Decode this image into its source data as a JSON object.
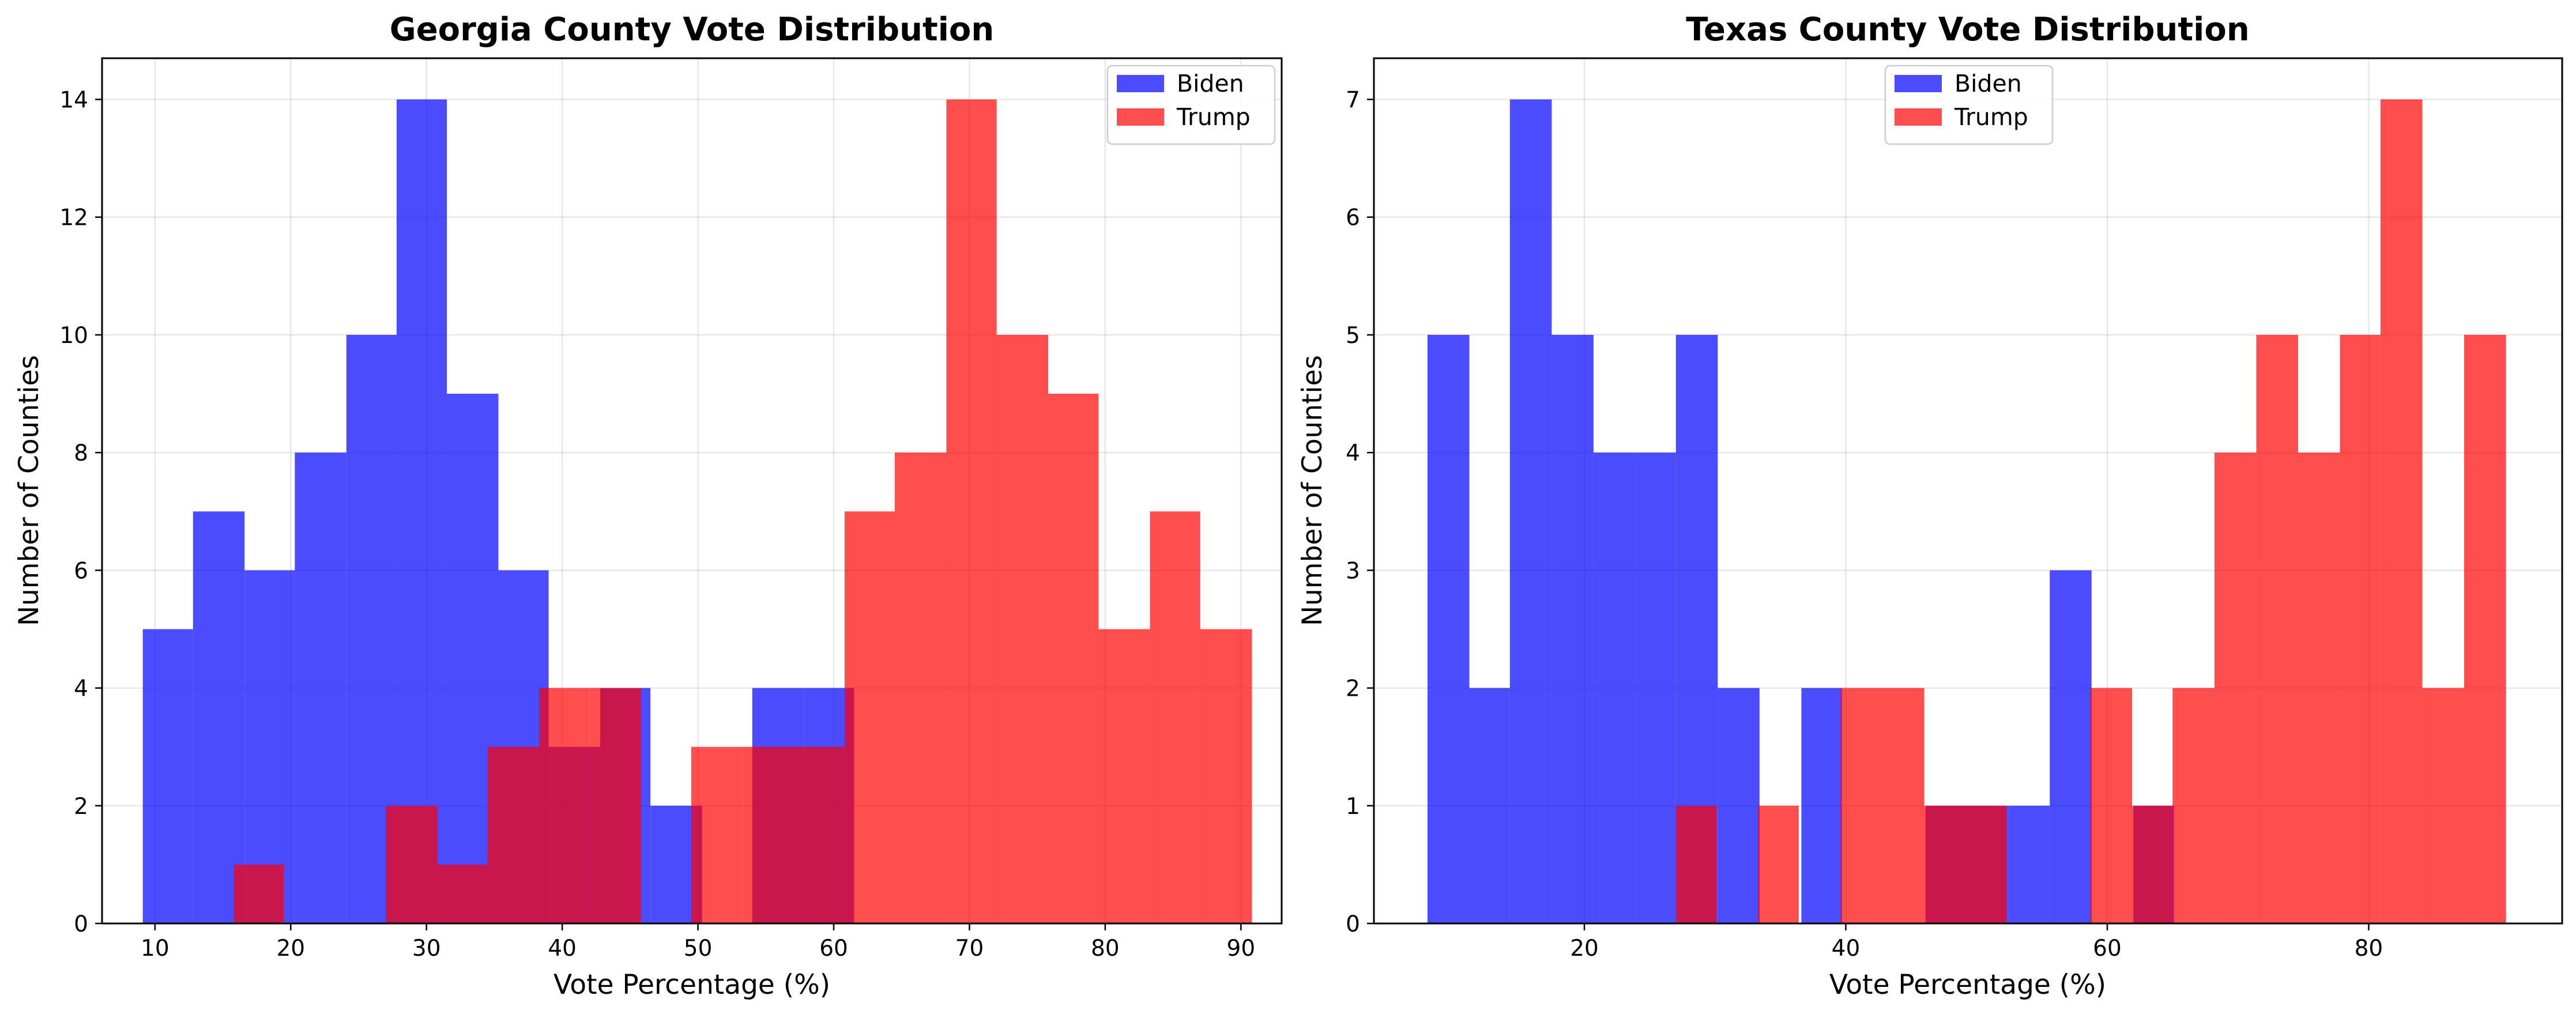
{
  "colors": {
    "biden": "#0000ff",
    "trump": "#ff0000"
  },
  "chart_data": [
    {
      "type": "histogram",
      "title": "Georgia County Vote Distribution",
      "xlabel": "Vote Percentage (%)",
      "ylabel": "Number of Counties",
      "xlim": [
        6.1,
        93.0
      ],
      "ylim": [
        0,
        14.7
      ],
      "xticks": [
        10,
        20,
        30,
        40,
        50,
        60,
        70,
        80,
        90
      ],
      "yticks": [
        0,
        2,
        4,
        6,
        8,
        10,
        12,
        14
      ],
      "legend": [
        "Biden",
        "Trump"
      ],
      "legend_position": "top-right",
      "grid": true,
      "series": [
        {
          "name": "Biden",
          "bins": [
            {
              "x0": 9.1,
              "x1": 12.8,
              "count": 5
            },
            {
              "x0": 12.8,
              "x1": 16.6,
              "count": 7
            },
            {
              "x0": 16.6,
              "x1": 20.3,
              "count": 6
            },
            {
              "x0": 20.3,
              "x1": 24.1,
              "count": 8
            },
            {
              "x0": 24.1,
              "x1": 27.8,
              "count": 10
            },
            {
              "x0": 27.8,
              "x1": 31.5,
              "count": 14
            },
            {
              "x0": 31.5,
              "x1": 35.3,
              "count": 9
            },
            {
              "x0": 35.3,
              "x1": 39.0,
              "count": 6
            },
            {
              "x0": 39.0,
              "x1": 42.8,
              "count": 3
            },
            {
              "x0": 42.8,
              "x1": 46.5,
              "count": 4
            },
            {
              "x0": 46.5,
              "x1": 50.3,
              "count": 2
            },
            {
              "x0": 50.3,
              "x1": 54.0,
              "count": 0
            },
            {
              "x0": 54.0,
              "x1": 57.8,
              "count": 4
            },
            {
              "x0": 57.8,
              "x1": 61.5,
              "count": 4
            }
          ]
        },
        {
          "name": "Trump",
          "bins": [
            {
              "x0": 15.8,
              "x1": 19.5,
              "count": 1
            },
            {
              "x0": 19.5,
              "x1": 23.3,
              "count": 0
            },
            {
              "x0": 23.3,
              "x1": 27.0,
              "count": 0
            },
            {
              "x0": 27.0,
              "x1": 30.8,
              "count": 2
            },
            {
              "x0": 30.8,
              "x1": 34.5,
              "count": 1
            },
            {
              "x0": 34.5,
              "x1": 38.3,
              "count": 3
            },
            {
              "x0": 38.3,
              "x1": 42.0,
              "count": 4
            },
            {
              "x0": 42.0,
              "x1": 45.8,
              "count": 4
            },
            {
              "x0": 45.8,
              "x1": 49.5,
              "count": 0
            },
            {
              "x0": 49.5,
              "x1": 53.3,
              "count": 3
            },
            {
              "x0": 53.3,
              "x1": 57.0,
              "count": 3
            },
            {
              "x0": 57.0,
              "x1": 60.8,
              "count": 3
            },
            {
              "x0": 60.8,
              "x1": 64.5,
              "count": 7
            },
            {
              "x0": 64.5,
              "x1": 68.3,
              "count": 8
            },
            {
              "x0": 68.3,
              "x1": 72.0,
              "count": 14
            },
            {
              "x0": 72.0,
              "x1": 75.8,
              "count": 10
            },
            {
              "x0": 75.8,
              "x1": 79.5,
              "count": 9
            },
            {
              "x0": 79.5,
              "x1": 83.3,
              "count": 5
            },
            {
              "x0": 83.3,
              "x1": 87.0,
              "count": 7
            },
            {
              "x0": 87.0,
              "x1": 90.8,
              "count": 5
            }
          ]
        }
      ]
    },
    {
      "type": "histogram",
      "title": "Texas County Vote Distribution",
      "xlabel": "Vote Percentage (%)",
      "ylabel": "Number of Counties",
      "xlim": [
        3.9,
        94.8
      ],
      "ylim": [
        0,
        7.35
      ],
      "xticks": [
        20,
        40,
        60,
        80
      ],
      "yticks": [
        0,
        1,
        2,
        3,
        4,
        5,
        6,
        7
      ],
      "legend": [
        "Biden",
        "Trump"
      ],
      "legend_position": "top-center",
      "grid": true,
      "series": [
        {
          "name": "Biden",
          "bins": [
            {
              "x0": 8.0,
              "x1": 11.2,
              "count": 5
            },
            {
              "x0": 11.2,
              "x1": 14.3,
              "count": 2
            },
            {
              "x0": 14.3,
              "x1": 17.5,
              "count": 7
            },
            {
              "x0": 17.5,
              "x1": 20.7,
              "count": 5
            },
            {
              "x0": 20.7,
              "x1": 23.9,
              "count": 4
            },
            {
              "x0": 23.9,
              "x1": 27.0,
              "count": 4
            },
            {
              "x0": 27.0,
              "x1": 30.2,
              "count": 5
            },
            {
              "x0": 30.2,
              "x1": 33.4,
              "count": 2
            },
            {
              "x0": 33.4,
              "x1": 36.6,
              "count": 0
            },
            {
              "x0": 36.6,
              "x1": 39.7,
              "count": 2
            },
            {
              "x0": 39.7,
              "x1": 42.9,
              "count": 0
            },
            {
              "x0": 42.9,
              "x1": 46.1,
              "count": 0
            },
            {
              "x0": 46.1,
              "x1": 49.3,
              "count": 1
            },
            {
              "x0": 49.3,
              "x1": 52.4,
              "count": 1
            },
            {
              "x0": 52.4,
              "x1": 55.6,
              "count": 1
            },
            {
              "x0": 55.6,
              "x1": 58.8,
              "count": 3
            },
            {
              "x0": 58.8,
              "x1": 62.0,
              "count": 0
            },
            {
              "x0": 62.0,
              "x1": 65.1,
              "count": 1
            }
          ]
        },
        {
          "name": "Trump",
          "bins": [
            {
              "x0": 27.0,
              "x1": 30.1,
              "count": 1
            },
            {
              "x0": 30.1,
              "x1": 33.3,
              "count": 0
            },
            {
              "x0": 33.3,
              "x1": 36.4,
              "count": 1
            },
            {
              "x0": 36.4,
              "x1": 39.6,
              "count": 0
            },
            {
              "x0": 39.6,
              "x1": 42.8,
              "count": 2
            },
            {
              "x0": 42.8,
              "x1": 46.0,
              "count": 2
            },
            {
              "x0": 46.0,
              "x1": 49.2,
              "count": 1
            },
            {
              "x0": 49.2,
              "x1": 52.3,
              "count": 1
            },
            {
              "x0": 52.3,
              "x1": 55.5,
              "count": 0
            },
            {
              "x0": 55.5,
              "x1": 58.7,
              "count": 0
            },
            {
              "x0": 58.7,
              "x1": 61.9,
              "count": 2
            },
            {
              "x0": 61.9,
              "x1": 65.0,
              "count": 1
            },
            {
              "x0": 65.0,
              "x1": 68.2,
              "count": 2
            },
            {
              "x0": 68.2,
              "x1": 71.4,
              "count": 4
            },
            {
              "x0": 71.4,
              "x1": 74.6,
              "count": 5
            },
            {
              "x0": 74.6,
              "x1": 77.8,
              "count": 4
            },
            {
              "x0": 77.8,
              "x1": 80.9,
              "count": 5
            },
            {
              "x0": 80.9,
              "x1": 84.1,
              "count": 7
            },
            {
              "x0": 84.1,
              "x1": 87.3,
              "count": 2
            },
            {
              "x0": 87.3,
              "x1": 90.5,
              "count": 5
            }
          ]
        }
      ]
    }
  ]
}
